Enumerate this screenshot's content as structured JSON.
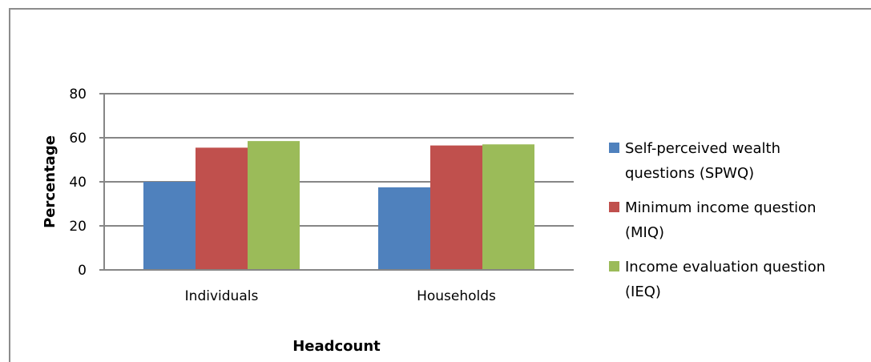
{
  "chart_data": {
    "type": "bar",
    "categories": [
      "Individuals",
      "Households"
    ],
    "series": [
      {
        "name": "Self-perceived wealth questions (SPWQ)",
        "legend_lines": [
          "Self-perceived wealth",
          "questions (SPWQ)"
        ],
        "color": "#4f81bd",
        "values": [
          40,
          37.5
        ]
      },
      {
        "name": "Minimum income question (MIQ)",
        "legend_lines": [
          "Minimum income question",
          "(MIQ)"
        ],
        "color": "#c0504d",
        "values": [
          55.5,
          56.5
        ]
      },
      {
        "name": "Income evaluation question (IEQ)",
        "legend_lines": [
          "Income evaluation question",
          "(IEQ)"
        ],
        "color": "#9bbb59",
        "values": [
          58.5,
          57
        ]
      }
    ],
    "xlabel": "Headcount",
    "ylabel": "Percentage",
    "ylim": [
      0,
      80
    ],
    "yticks": [
      0,
      20,
      40,
      60,
      80
    ],
    "grid": true,
    "legend_position": "right"
  }
}
